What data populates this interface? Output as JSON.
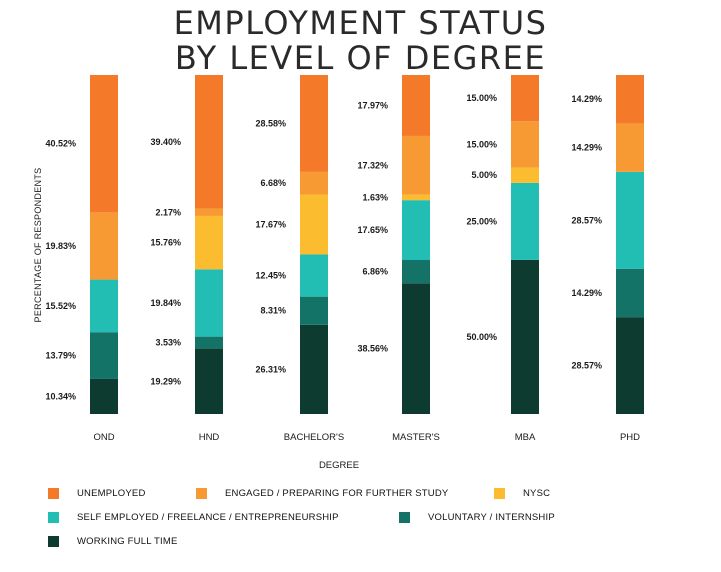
{
  "chart_data": {
    "type": "bar",
    "stacked": true,
    "title": [
      "EMPLOYMENT STATUS",
      "BY LEVEL OF DEGREE"
    ],
    "xlabel": "DEGREE",
    "ylabel": "PERCENTAGE OF RESPONDENTS",
    "categories": [
      "OND",
      "HND",
      "BACHELOR'S",
      "MASTER'S",
      "MBA",
      "PHD"
    ],
    "series": [
      {
        "name": "WORKING FULL TIME",
        "color": "#0e3b30",
        "values": [
          10.34,
          19.29,
          26.31,
          38.56,
          50.0,
          28.57
        ],
        "labels": [
          "10.34%",
          "19.29%",
          "26.31%",
          "38.56%",
          "50.00%",
          "28.57%"
        ]
      },
      {
        "name": "VOLUNTARY / INTERNSHIP",
        "color": "#147367",
        "values": [
          13.79,
          3.53,
          8.31,
          6.86,
          0,
          14.29
        ],
        "labels": [
          "13.79%",
          "3.53%",
          "8.31%",
          "6.86%",
          "",
          "14.29%"
        ]
      },
      {
        "name": "SELF EMPLOYED / FREELANCE / ENTREPRENEURSHIP",
        "color": "#22bdb3",
        "values": [
          15.52,
          19.84,
          12.45,
          17.65,
          25.0,
          28.57
        ],
        "labels": [
          "15.52%",
          "19.84%",
          "12.45%",
          "17.65%",
          "25.00%",
          "28.57%"
        ]
      },
      {
        "name": "NYSC",
        "color": "#fbbc2f",
        "values": [
          0,
          15.76,
          17.67,
          1.63,
          5.0,
          0
        ],
        "labels": [
          "",
          "15.76%",
          "17.67%",
          "1.63%",
          "5.00%",
          ""
        ]
      },
      {
        "name": "ENGAGED / PREPARING FOR FURTHER STUDY",
        "color": "#f89a33",
        "values": [
          19.83,
          2.17,
          6.68,
          17.32,
          15.0,
          14.29
        ],
        "labels": [
          "19.83%",
          "2.17%",
          "6.68%",
          "17.32%",
          "15.00%",
          "14.29%"
        ]
      },
      {
        "name": "UNEMPLOYED",
        "color": "#f47a29",
        "values": [
          40.52,
          39.4,
          28.58,
          17.97,
          15.0,
          14.29
        ],
        "labels": [
          "40.52%",
          "39.40%",
          "28.58%",
          "17.97%",
          "15.00%",
          "14.29%"
        ]
      }
    ],
    "legend_order": [
      "UNEMPLOYED",
      "ENGAGED / PREPARING FOR FURTHER STUDY",
      "NYSC",
      "SELF EMPLOYED / FREELANCE / ENTREPRENEURSHIP",
      "VOLUNTARY / INTERNSHIP",
      "WORKING FULL TIME"
    ],
    "legend_position": "bottom",
    "grid": false
  }
}
